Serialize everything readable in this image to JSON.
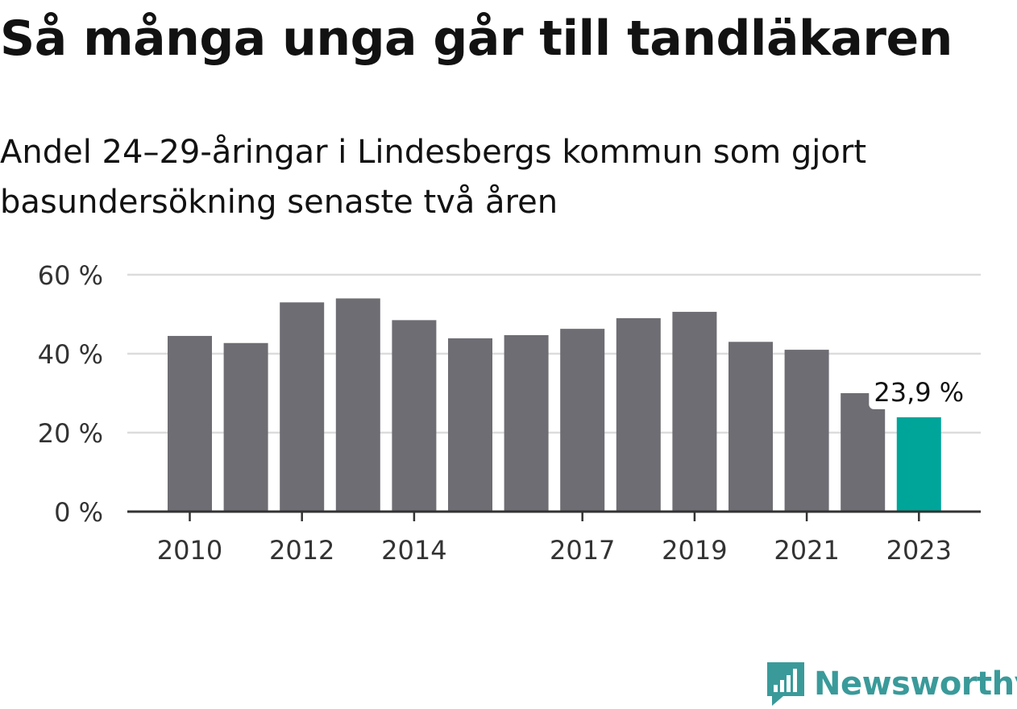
{
  "title": "Så många unga går till tandläkaren",
  "subtitle": "Andel 24–29-åringar i Lindesbergs kommun som gjort basundersökning senaste två åren",
  "brand": "Newsworthy",
  "colors": {
    "bar": "#6e6d73",
    "highlight": "#00a59a",
    "grid": "#dcdcdc",
    "axis": "#333333",
    "brand": "#3a9a9a"
  },
  "chart_data": {
    "type": "bar",
    "categories": [
      "2010",
      "2011",
      "2012",
      "2013",
      "2014",
      "2015",
      "2016",
      "2017",
      "2018",
      "2019",
      "2020",
      "2021",
      "2022",
      "2023"
    ],
    "values": [
      44.5,
      42.7,
      53.0,
      54.0,
      48.5,
      43.9,
      44.7,
      46.3,
      49.0,
      50.6,
      43.0,
      41.0,
      30.0,
      23.9
    ],
    "x_tick_labels": [
      "2010",
      "2012",
      "2014",
      "2017",
      "2019",
      "2021",
      "2023"
    ],
    "y_ticks": [
      0,
      20,
      40,
      60
    ],
    "y_tick_labels": [
      "0 %",
      "20 %",
      "40 %",
      "60 %"
    ],
    "ylim": [
      0,
      60
    ],
    "highlight_index": 13,
    "annotation": "23,9 %",
    "grid": true,
    "xlabel": "",
    "ylabel": ""
  }
}
